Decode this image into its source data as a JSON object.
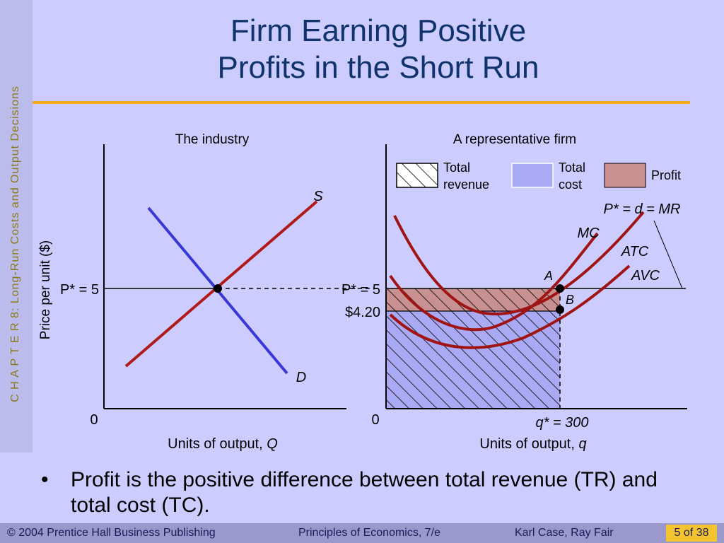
{
  "sidebar": {
    "chapter_text": "C H A P T E R  8:  Long-Run Costs and Output Decisions"
  },
  "title": {
    "line1": "Firm Earning Positive",
    "line2": "Profits in the Short Run"
  },
  "industry": {
    "heading": "The industry",
    "y_axis_label": "Price per unit ($)",
    "x_axis_label": "Units of output, ",
    "x_axis_var": "Q",
    "origin": "0",
    "price_label": "P* = 5",
    "supply_label": "S",
    "demand_label": "D"
  },
  "firm": {
    "heading": "A representative firm",
    "legend": {
      "total_revenue_l1": "Total",
      "total_revenue_l2": "revenue",
      "total_cost_l1": "Total",
      "total_cost_l2": "cost",
      "profit": "Profit"
    },
    "demand_label": "P* = d = MR",
    "mc_label": "MC",
    "atc_label": "ATC",
    "avc_label": "AVC",
    "point_a": "A",
    "point_b": "B",
    "price_label": "P* = 5",
    "atc_value_label": "$4.20",
    "origin": "0",
    "quantity_label": "q* = 300",
    "x_axis_label": "Units of output, ",
    "x_axis_var": "q"
  },
  "bullet": {
    "marker": "•",
    "text": "Profit is the positive difference between total revenue (TR) and total cost (TC)."
  },
  "footer": {
    "copyright": "© 2004 Prentice Hall Business Publishing",
    "book": "Principles of Economics, 7/e",
    "authors": "Karl Case, Ray Fair",
    "page": "5 of 38"
  },
  "colors": {
    "title": "#10336b",
    "accent_rule": "#f4a81a",
    "supply": "#b01a1a",
    "demand": "#3838d8",
    "cost_curves": "#a01414",
    "total_cost_fill": "#aaaaf4",
    "profit_fill": "#c89090"
  }
}
